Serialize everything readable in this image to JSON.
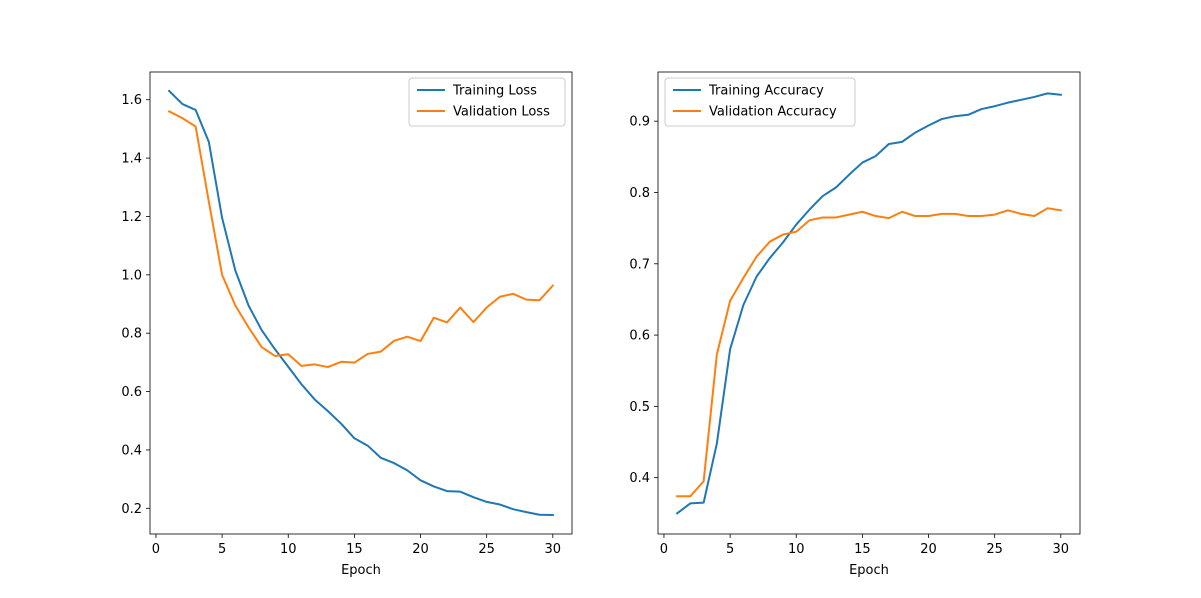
{
  "chart_data": [
    {
      "type": "line",
      "title": "",
      "xlabel": "Epoch",
      "ylabel": "",
      "xlim": [
        -0.45,
        31.45
      ],
      "ylim": [
        0.112,
        1.695
      ],
      "xticks": [
        0,
        5,
        10,
        15,
        20,
        25,
        30
      ],
      "yticks": [
        0.2,
        0.4,
        0.6,
        0.8,
        1.0,
        1.2,
        1.4,
        1.6
      ],
      "ytick_labels": [
        "0.2",
        "0.4",
        "0.6",
        "0.8",
        "1.0",
        "1.2",
        "1.4",
        "1.6"
      ],
      "grid": false,
      "legend": "upper right",
      "x": [
        1,
        2,
        3,
        4,
        5,
        6,
        7,
        8,
        9,
        10,
        11,
        12,
        13,
        14,
        15,
        16,
        17,
        18,
        19,
        20,
        21,
        22,
        23,
        24,
        25,
        26,
        27,
        28,
        29,
        30
      ],
      "series": [
        {
          "name": "Training Loss",
          "color": "#1f77b4",
          "values": [
            1.63,
            1.585,
            1.565,
            1.455,
            1.195,
            1.015,
            0.895,
            0.81,
            0.745,
            0.685,
            0.625,
            0.573,
            0.533,
            0.49,
            0.44,
            0.415,
            0.373,
            0.355,
            0.33,
            0.296,
            0.275,
            0.259,
            0.257,
            0.238,
            0.222,
            0.213,
            0.197,
            0.187,
            0.178,
            0.177
          ]
        },
        {
          "name": "Validation Loss",
          "color": "#ff7f0e",
          "values": [
            1.56,
            1.537,
            1.508,
            1.25,
            1.0,
            0.895,
            0.82,
            0.752,
            0.722,
            0.728,
            0.688,
            0.693,
            0.684,
            0.702,
            0.699,
            0.729,
            0.737,
            0.774,
            0.788,
            0.773,
            0.853,
            0.837,
            0.888,
            0.838,
            0.888,
            0.925,
            0.935,
            0.915,
            0.913,
            0.963
          ]
        }
      ]
    },
    {
      "type": "line",
      "title": "",
      "xlabel": "Epoch",
      "ylabel": "",
      "xlim": [
        -0.45,
        31.45
      ],
      "ylim": [
        0.321,
        0.969
      ],
      "xticks": [
        0,
        5,
        10,
        15,
        20,
        25,
        30
      ],
      "yticks": [
        0.4,
        0.5,
        0.6,
        0.7,
        0.8,
        0.9
      ],
      "ytick_labels": [
        "0.4",
        "0.5",
        "0.6",
        "0.7",
        "0.8",
        "0.9"
      ],
      "grid": false,
      "legend": "upper left",
      "x": [
        1,
        2,
        3,
        4,
        5,
        6,
        7,
        8,
        9,
        10,
        11,
        12,
        13,
        14,
        15,
        16,
        17,
        18,
        19,
        20,
        21,
        22,
        23,
        24,
        25,
        26,
        27,
        28,
        29,
        30
      ],
      "series": [
        {
          "name": "Training Accuracy",
          "color": "#1f77b4",
          "values": [
            0.35,
            0.364,
            0.365,
            0.448,
            0.58,
            0.642,
            0.682,
            0.708,
            0.73,
            0.755,
            0.776,
            0.795,
            0.807,
            0.825,
            0.842,
            0.851,
            0.868,
            0.871,
            0.884,
            0.894,
            0.903,
            0.907,
            0.909,
            0.917,
            0.921,
            0.926,
            0.93,
            0.934,
            0.939,
            0.937
          ]
        },
        {
          "name": "Validation Accuracy",
          "color": "#ff7f0e",
          "values": [
            0.374,
            0.374,
            0.395,
            0.573,
            0.648,
            0.68,
            0.71,
            0.731,
            0.741,
            0.745,
            0.761,
            0.765,
            0.765,
            0.769,
            0.773,
            0.767,
            0.764,
            0.773,
            0.767,
            0.767,
            0.77,
            0.77,
            0.767,
            0.767,
            0.769,
            0.775,
            0.77,
            0.767,
            0.778,
            0.775
          ]
        }
      ]
    }
  ]
}
